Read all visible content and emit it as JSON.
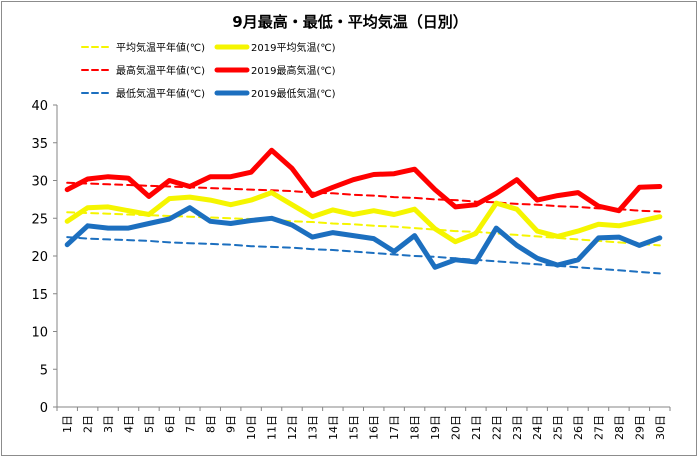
{
  "chart_data": {
    "type": "line",
    "title": "9月最高・最低・平均気温（日別）",
    "xlabel": "",
    "ylabel": "",
    "ylim": [
      0,
      40
    ],
    "yticks": [
      0,
      5,
      10,
      15,
      20,
      25,
      30,
      35,
      40
    ],
    "grid": false,
    "legend_position": "top",
    "categories": [
      "1日",
      "2日",
      "3日",
      "4日",
      "5日",
      "6日",
      "7日",
      "8日",
      "9日",
      "10日",
      "11日",
      "12日",
      "13日",
      "14日",
      "15日",
      "16日",
      "17日",
      "18日",
      "19日",
      "20日",
      "21日",
      "22日",
      "23日",
      "24日",
      "25日",
      "26日",
      "27日",
      "28日",
      "29日",
      "30日"
    ],
    "series": [
      {
        "name": "平均気温平年値(℃)",
        "color": "#f5f500",
        "style": "dashed",
        "values": [
          25.8,
          25.7,
          25.6,
          25.5,
          25.4,
          25.3,
          25.2,
          25.1,
          25.0,
          24.9,
          24.8,
          24.6,
          24.5,
          24.3,
          24.2,
          24.0,
          23.9,
          23.7,
          23.5,
          23.3,
          23.2,
          23.0,
          22.8,
          22.6,
          22.4,
          22.2,
          22.0,
          21.8,
          21.6,
          21.4
        ]
      },
      {
        "name": "2019平均気温(℃)",
        "color": "#f5f500",
        "style": "solid",
        "values": [
          24.6,
          26.4,
          26.5,
          26.0,
          25.5,
          27.6,
          27.8,
          27.4,
          26.8,
          27.4,
          28.4,
          26.8,
          25.2,
          26.1,
          25.5,
          26.0,
          25.5,
          26.2,
          23.6,
          21.9,
          23.0,
          27.0,
          26.2,
          23.3,
          22.6,
          23.3,
          24.2,
          24.0,
          24.6,
          25.2
        ]
      },
      {
        "name": "最高気温平年値(℃)",
        "color": "#ff0000",
        "style": "dashed",
        "values": [
          29.7,
          29.6,
          29.5,
          29.4,
          29.3,
          29.2,
          29.1,
          29.0,
          28.9,
          28.8,
          28.7,
          28.6,
          28.4,
          28.3,
          28.1,
          28.0,
          27.8,
          27.7,
          27.5,
          27.4,
          27.2,
          27.1,
          26.9,
          26.8,
          26.6,
          26.5,
          26.3,
          26.2,
          26.0,
          25.9
        ]
      },
      {
        "name": "2019最高気温(℃)",
        "color": "#ff0000",
        "style": "solid",
        "values": [
          28.8,
          30.2,
          30.5,
          30.3,
          27.9,
          30.0,
          29.2,
          30.5,
          30.5,
          31.1,
          34.0,
          31.6,
          28.0,
          29.1,
          30.1,
          30.8,
          30.9,
          31.5,
          28.8,
          26.5,
          26.8,
          28.3,
          30.1,
          27.4,
          28.0,
          28.4,
          26.6,
          26.0,
          29.1,
          29.2
        ]
      },
      {
        "name": "最低気温平年値(℃)",
        "color": "#1c6fbf",
        "style": "dashed",
        "values": [
          22.5,
          22.3,
          22.2,
          22.1,
          22.0,
          21.8,
          21.7,
          21.6,
          21.5,
          21.3,
          21.2,
          21.1,
          20.9,
          20.8,
          20.6,
          20.4,
          20.2,
          20.0,
          19.9,
          19.7,
          19.5,
          19.3,
          19.1,
          18.9,
          18.7,
          18.5,
          18.3,
          18.1,
          17.9,
          17.7
        ]
      },
      {
        "name": "2019最低気温(℃)",
        "color": "#1c6fbf",
        "style": "solid",
        "values": [
          21.5,
          24.0,
          23.7,
          23.7,
          24.3,
          24.9,
          26.4,
          24.6,
          24.3,
          24.7,
          25.0,
          24.1,
          22.5,
          23.1,
          22.7,
          22.3,
          20.6,
          22.7,
          18.5,
          19.5,
          19.2,
          23.7,
          21.4,
          19.7,
          18.8,
          19.5,
          22.4,
          22.5,
          21.4,
          22.4
        ]
      }
    ]
  }
}
